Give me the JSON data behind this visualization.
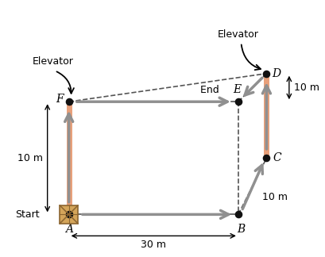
{
  "A": [
    1.0,
    1.0
  ],
  "B": [
    4.0,
    1.0
  ],
  "C": [
    4.5,
    2.0
  ],
  "D": [
    4.5,
    3.5
  ],
  "E": [
    4.0,
    3.0
  ],
  "F": [
    1.0,
    3.0
  ],
  "elevator_color": "#E8A07A",
  "arrow_color": "#909090",
  "dot_color": "#111111",
  "dashed_color": "#555555",
  "elevator_left_text": "Elevator",
  "elevator_right_text": "Elevator",
  "start_label": "Start",
  "label_A": "A",
  "label_B": "B",
  "label_C": "C",
  "label_D": "D",
  "label_E": "E",
  "label_End": "End ",
  "label_F": "F",
  "dim_30": "30 m",
  "dim_10_right": "10 m",
  "dim_10_left": "10 m",
  "dim_10_diag": "10 m"
}
